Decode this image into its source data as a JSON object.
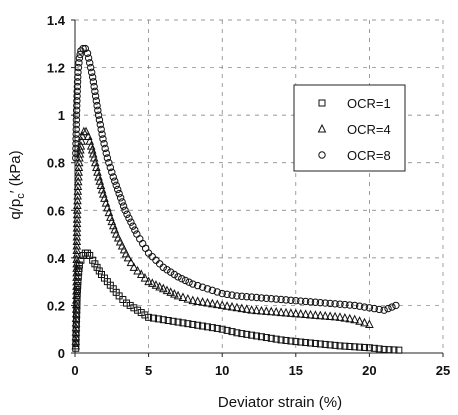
{
  "chart_data": {
    "type": "scatter",
    "xlabel": "Deviator strain (%)",
    "ylabel": {
      "main": "q/p",
      "sub": "c",
      "suffix": "′ (kPa)"
    },
    "xlim": [
      0,
      25
    ],
    "ylim": [
      0,
      1.4
    ],
    "x_ticks": [
      0,
      5,
      10,
      15,
      20,
      25
    ],
    "y_ticks": [
      0,
      0.2,
      0.4,
      0.6,
      0.8,
      1,
      1.2,
      1.4
    ],
    "x_tick_labels": [
      "0",
      "5",
      "10",
      "15",
      "20",
      "25"
    ],
    "y_tick_labels": [
      "0",
      "0.2",
      "0.4",
      "0.6",
      "0.8",
      "1",
      "1.2",
      "1.4"
    ],
    "grid": true,
    "legend_position": "upper-right",
    "series": [
      {
        "name": "OCR=1",
        "marker": "square",
        "points": [
          [
            0.05,
            0.02
          ],
          [
            0.08,
            0.1
          ],
          [
            0.12,
            0.18
          ],
          [
            0.15,
            0.25
          ],
          [
            0.2,
            0.3
          ],
          [
            0.25,
            0.34
          ],
          [
            0.3,
            0.37
          ],
          [
            0.4,
            0.39
          ],
          [
            0.55,
            0.41
          ],
          [
            0.7,
            0.42
          ],
          [
            0.85,
            0.42
          ],
          [
            1.0,
            0.41
          ],
          [
            1.2,
            0.39
          ],
          [
            1.5,
            0.36
          ],
          [
            1.8,
            0.33
          ],
          [
            2.2,
            0.3
          ],
          [
            2.6,
            0.27
          ],
          [
            3.0,
            0.24
          ],
          [
            3.5,
            0.21
          ],
          [
            4.0,
            0.19
          ],
          [
            4.5,
            0.17
          ],
          [
            5.0,
            0.15
          ],
          [
            6.0,
            0.14
          ],
          [
            7.0,
            0.13
          ],
          [
            8.0,
            0.12
          ],
          [
            9.0,
            0.11
          ],
          [
            10.0,
            0.1
          ],
          [
            11.0,
            0.085
          ],
          [
            12.0,
            0.075
          ],
          [
            13.0,
            0.065
          ],
          [
            14.0,
            0.055
          ],
          [
            15.0,
            0.048
          ],
          [
            16.0,
            0.042
          ],
          [
            17.0,
            0.036
          ],
          [
            18.0,
            0.03
          ],
          [
            19.0,
            0.026
          ],
          [
            20.0,
            0.022
          ],
          [
            21.0,
            0.015
          ],
          [
            22.0,
            0.012
          ]
        ]
      },
      {
        "name": "OCR=4",
        "marker": "triangle",
        "points": [
          [
            0.05,
            0.03
          ],
          [
            0.1,
            0.28
          ],
          [
            0.12,
            0.45
          ],
          [
            0.15,
            0.6
          ],
          [
            0.2,
            0.7
          ],
          [
            0.25,
            0.76
          ],
          [
            0.3,
            0.82
          ],
          [
            0.4,
            0.87
          ],
          [
            0.5,
            0.91
          ],
          [
            0.6,
            0.93
          ],
          [
            0.75,
            0.93
          ],
          [
            0.9,
            0.91
          ],
          [
            1.1,
            0.87
          ],
          [
            1.3,
            0.82
          ],
          [
            1.6,
            0.74
          ],
          [
            2.0,
            0.65
          ],
          [
            2.4,
            0.57
          ],
          [
            2.8,
            0.5
          ],
          [
            3.2,
            0.45
          ],
          [
            3.6,
            0.4
          ],
          [
            4.0,
            0.36
          ],
          [
            4.5,
            0.33
          ],
          [
            5.0,
            0.3
          ],
          [
            6.0,
            0.27
          ],
          [
            7.0,
            0.24
          ],
          [
            8.0,
            0.22
          ],
          [
            9.0,
            0.21
          ],
          [
            10.0,
            0.2
          ],
          [
            11.0,
            0.19
          ],
          [
            12.0,
            0.18
          ],
          [
            13.0,
            0.175
          ],
          [
            14.0,
            0.17
          ],
          [
            15.0,
            0.165
          ],
          [
            16.0,
            0.16
          ],
          [
            17.0,
            0.155
          ],
          [
            18.0,
            0.15
          ],
          [
            19.0,
            0.14
          ],
          [
            20.0,
            0.12
          ]
        ]
      },
      {
        "name": "OCR=8",
        "marker": "circle",
        "points": [
          [
            0.05,
            0.82
          ],
          [
            0.08,
            0.92
          ],
          [
            0.1,
            1.0
          ],
          [
            0.15,
            1.1
          ],
          [
            0.2,
            1.18
          ],
          [
            0.3,
            1.24
          ],
          [
            0.4,
            1.27
          ],
          [
            0.55,
            1.28
          ],
          [
            0.7,
            1.28
          ],
          [
            0.85,
            1.26
          ],
          [
            1.0,
            1.22
          ],
          [
            1.2,
            1.16
          ],
          [
            1.4,
            1.08
          ],
          [
            1.6,
            1.0
          ],
          [
            1.9,
            0.9
          ],
          [
            2.2,
            0.82
          ],
          [
            2.6,
            0.74
          ],
          [
            3.0,
            0.67
          ],
          [
            3.4,
            0.6
          ],
          [
            3.8,
            0.55
          ],
          [
            4.2,
            0.5
          ],
          [
            4.6,
            0.46
          ],
          [
            5.0,
            0.42
          ],
          [
            5.5,
            0.39
          ],
          [
            6.0,
            0.36
          ],
          [
            7.0,
            0.32
          ],
          [
            8.0,
            0.29
          ],
          [
            9.0,
            0.27
          ],
          [
            10.0,
            0.25
          ],
          [
            11.0,
            0.24
          ],
          [
            12.0,
            0.235
          ],
          [
            13.0,
            0.23
          ],
          [
            14.0,
            0.225
          ],
          [
            15.0,
            0.22
          ],
          [
            16.0,
            0.215
          ],
          [
            17.0,
            0.21
          ],
          [
            18.0,
            0.205
          ],
          [
            19.0,
            0.2
          ],
          [
            20.0,
            0.19
          ],
          [
            21.0,
            0.18
          ],
          [
            21.8,
            0.2
          ]
        ]
      }
    ]
  }
}
